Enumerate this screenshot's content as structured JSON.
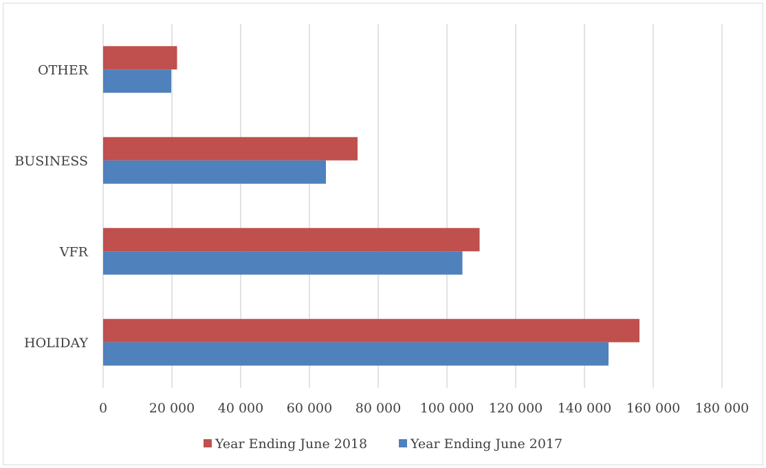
{
  "chart_data": {
    "type": "bar",
    "orientation": "horizontal",
    "categories": [
      "HOLIDAY",
      "VFR",
      "BUSINESS",
      "OTHER"
    ],
    "series": [
      {
        "name": "Year Ending June 2017",
        "color": "#4f81bd",
        "values": [
          147000,
          104500,
          64800,
          19800
        ]
      },
      {
        "name": "Year Ending June 2018",
        "color": "#c0504d",
        "values": [
          156000,
          109500,
          74000,
          21500
        ]
      }
    ],
    "xlim": [
      0,
      180000
    ],
    "x_ticks": [
      0,
      20000,
      40000,
      60000,
      80000,
      100000,
      120000,
      140000,
      160000,
      180000
    ],
    "x_tick_labels": [
      "0",
      "20 000",
      "40 000",
      "60 000",
      "80 000",
      "100 000",
      "120 000",
      "140 000",
      "160 000",
      "180 000"
    ],
    "grid": "vertical",
    "legend_position": "bottom",
    "legend_order": [
      "Year Ending June 2018",
      "Year Ending June 2017"
    ]
  }
}
